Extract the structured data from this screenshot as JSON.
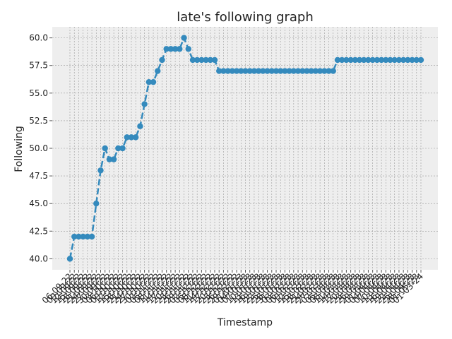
{
  "chart_data": {
    "type": "line",
    "title": "late's following graph",
    "xlabel": "Timestamp",
    "ylabel": "Following",
    "ylim": [
      39,
      61
    ],
    "yticks": [
      40.0,
      42.5,
      45.0,
      47.5,
      50.0,
      52.5,
      55.0,
      57.5,
      60.0
    ],
    "ytick_labels": [
      "40.0",
      "42.5",
      "45.0",
      "47.5",
      "50.0",
      "52.5",
      "55.0",
      "57.5",
      "60.0"
    ],
    "grid": true,
    "line_style": "dashed",
    "marker": "circle",
    "colors": {
      "series": "#348abd",
      "plot_background": "#eeeeee",
      "grid": "#999999"
    },
    "x_labels_partial": [
      "06-09-22",
      "09-09-22",
      "12-09-22",
      "15-09-22",
      "18-09-22",
      "21-09-22",
      "24-09-22",
      "27-09-22",
      "30-09-22",
      "03-10-22",
      "06-10-22",
      "09-10-22",
      "12-10-22",
      "15-10-22",
      "18-10-22",
      "21-10-22",
      "24-10-22",
      "27-10-22",
      "30-10-22",
      "02-11-22",
      "05-11-22",
      "08-11-22",
      "11-11-22",
      "14-11-22",
      "17-11-22",
      "20-11-22",
      "23-11-22",
      "26-11-22",
      "29-11-22",
      "02-12-22",
      "05-12-22",
      "08-12-22",
      "11-12-22",
      "14-12-22",
      "17-12-22",
      "20-12-22",
      "23-12-22",
      "26-12-22",
      "29-12-22",
      "01-01-23",
      "04-01-23",
      "07-01-23",
      "10-01-23",
      "13-01-23",
      "16-01-23",
      "19-01-23",
      "22-01-23",
      "25-01-23",
      "28-01-23",
      "31-01-23",
      "03-02-23",
      "06-02-23",
      "09-02-23",
      "12-02-23",
      "15-02-23",
      "18-02-23",
      "21-02-23",
      "24-02-23",
      "27-02-23",
      "02-03-23",
      "05-03-23",
      "08-03-23",
      "11-03-23",
      "14-03-23",
      "17-03-23",
      "20-03-23",
      "23-03-23",
      "26-03-23",
      "29-03-23",
      "01-04-23",
      "04-04-23",
      "07-04-23",
      "10-04-23",
      "13-04-23",
      "16-04-23",
      "19-04-23",
      "22-04-23",
      "25-04-23",
      "28-04-23",
      "01-05-23",
      "01-03-24"
    ],
    "series": [
      {
        "values": [
          40,
          42,
          42,
          42,
          42,
          42,
          45,
          48,
          50,
          49,
          49,
          50,
          50,
          51,
          51,
          51,
          52,
          54,
          56,
          56,
          57,
          58,
          59,
          59,
          59,
          59,
          60,
          59,
          58,
          58,
          58,
          58,
          58,
          58,
          57,
          57,
          57,
          57,
          57,
          57,
          57,
          57,
          57,
          57,
          57,
          57,
          57,
          57,
          57,
          57,
          57,
          57,
          57,
          57,
          57,
          57,
          57,
          57,
          57,
          57,
          57,
          58,
          58,
          58,
          58,
          58,
          58,
          58,
          58,
          58,
          58,
          58,
          58,
          58,
          58,
          58,
          58,
          58,
          58,
          58,
          58
        ]
      }
    ]
  }
}
